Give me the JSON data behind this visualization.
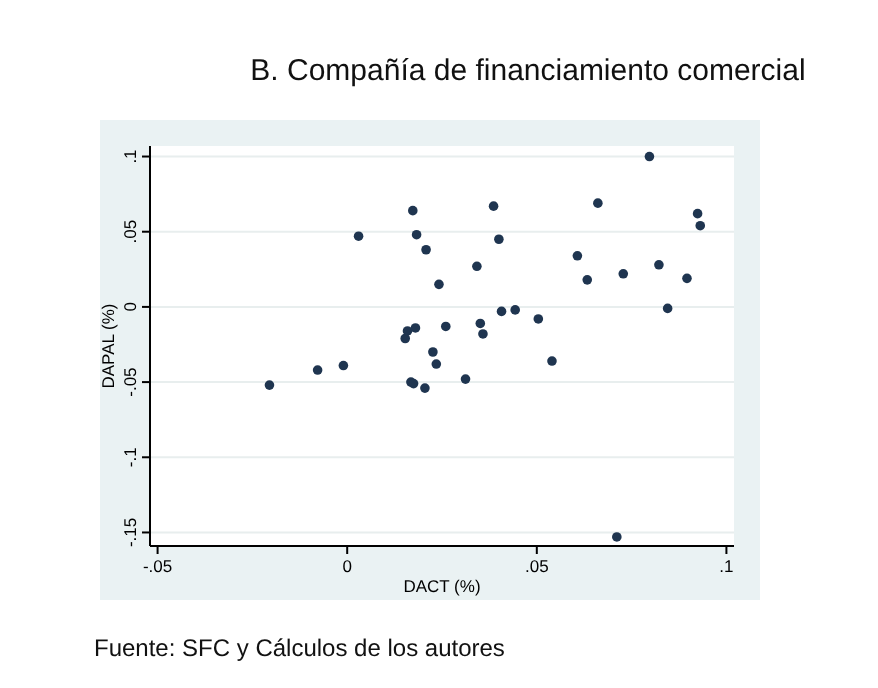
{
  "chart_data": {
    "type": "scatter",
    "title": "B. Compañía de financiamiento comercial",
    "xlabel": "DACT (%)",
    "ylabel": "DAPAL (%)",
    "annotations": [
      "Fuente: SFC y Cálculos de los autores"
    ],
    "xlim": [
      -0.052,
      0.102
    ],
    "ylim": [
      -0.159,
      0.107
    ],
    "xticks": [
      {
        "value": -0.05,
        "label": "-.05"
      },
      0,
      {
        "value": 0.05,
        "label": ".05"
      },
      {
        "value": 0.1,
        "label": ".1"
      }
    ],
    "yticks": [
      {
        "value": -0.15,
        "label": "-.15"
      },
      {
        "value": -0.1,
        "label": "-.1"
      },
      {
        "value": -0.05,
        "label": "-.05"
      },
      0,
      {
        "value": 0.05,
        "label": ".05"
      },
      {
        "value": 0.1,
        "label": ".1"
      }
    ],
    "grid": "y",
    "marker": "circle",
    "series": [
      {
        "color": "#1f3550",
        "x": [
          -0.0205,
          -0.0078,
          -0.001,
          0.003,
          0.0173,
          0.0183,
          0.0208,
          0.0242,
          0.0153,
          0.0159,
          0.018,
          0.0226,
          0.0235,
          0.026,
          0.0168,
          0.0175,
          0.0205,
          0.0312,
          0.0342,
          0.0386,
          0.04,
          0.0351,
          0.0358,
          0.0407,
          0.0443,
          0.0504,
          0.054,
          0.0607,
          0.0633,
          0.0661,
          0.0728,
          0.0711,
          0.0797,
          0.0822,
          0.0845,
          0.0896,
          0.0924,
          0.0931
        ],
        "values": [
          -0.052,
          -0.042,
          -0.039,
          0.047,
          0.064,
          0.048,
          0.038,
          0.015,
          -0.021,
          -0.016,
          -0.014,
          -0.03,
          -0.038,
          -0.013,
          -0.05,
          -0.051,
          -0.054,
          -0.048,
          0.027,
          0.067,
          0.045,
          -0.011,
          -0.018,
          -0.003,
          -0.002,
          -0.008,
          -0.036,
          0.034,
          0.018,
          0.069,
          0.022,
          -0.153,
          0.1,
          0.028,
          -0.001,
          0.019,
          0.062,
          0.054
        ]
      }
    ]
  }
}
